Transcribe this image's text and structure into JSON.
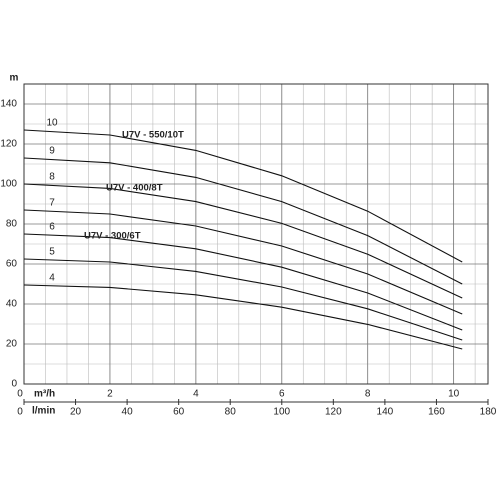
{
  "chart_data": {
    "type": "line",
    "x": [
      0,
      2,
      4,
      6,
      8,
      10.2
    ],
    "series": [
      {
        "name": "10",
        "color": "#111111",
        "values": [
          127,
          124.5,
          116.8,
          104.1,
          86.4,
          61
        ]
      },
      {
        "name": "9",
        "color": "#111111",
        "values": [
          113,
          110.6,
          103.3,
          91.2,
          74.2,
          50
        ]
      },
      {
        "name": "8",
        "color": "#111111",
        "values": [
          100,
          97.8,
          91.2,
          80.3,
          64.9,
          43
        ]
      },
      {
        "name": "7",
        "color": "#111111",
        "values": [
          87,
          85,
          79,
          69,
          55,
          35
        ]
      },
      {
        "name": "6",
        "color": "#111111",
        "values": [
          75,
          73.2,
          67.6,
          58.4,
          45.5,
          27
        ]
      },
      {
        "name": "5",
        "color": "#111111",
        "values": [
          62.5,
          61,
          56.3,
          48.5,
          37.6,
          22
        ]
      },
      {
        "name": "4",
        "color": "#111111",
        "values": [
          49.5,
          48.3,
          44.6,
          38.4,
          29.8,
          17.5
        ]
      }
    ],
    "annotations": [
      "U7V - 550/10T",
      "U7V - 400/8T",
      "U7V - 300/6T"
    ],
    "ylabel": "m",
    "xlabel": "m³/h",
    "x2label": "l/min",
    "xlim": [
      0,
      10.8
    ],
    "xticks": [
      0,
      2,
      4,
      6,
      8,
      10
    ],
    "x2lim": [
      0,
      180
    ],
    "x2ticks": [
      0,
      20,
      40,
      60,
      80,
      100,
      120,
      140,
      160,
      180
    ],
    "ylim": [
      0,
      150
    ],
    "yticks": [
      0,
      20,
      40,
      60,
      80,
      100,
      120,
      140
    ],
    "grid": true
  }
}
